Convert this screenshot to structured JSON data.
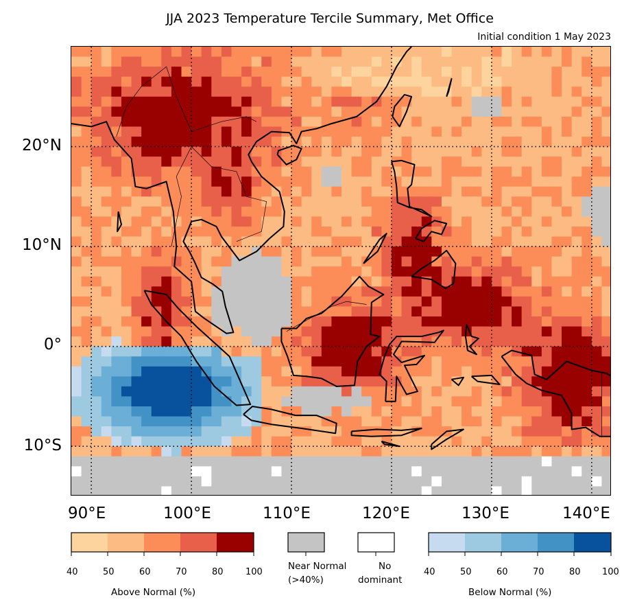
{
  "title": "JJA 2023 Temperature Tercile Summary, Met Office",
  "subtitle": "Initial condition 1 May 2023",
  "map": {
    "lon_range": [
      88,
      142
    ],
    "lat_range": [
      -15,
      30
    ],
    "lat_labels": [
      "20°N",
      "10°N",
      "0°",
      "10°S"
    ],
    "lon_labels": [
      "90°E",
      "100°E",
      "110°E",
      "120°E",
      "130°E",
      "140°E"
    ],
    "grid": "dotted",
    "regions": [
      {
        "category": "above_90",
        "name": "mainland-southeast-asia-north"
      },
      {
        "category": "above_90",
        "name": "philippines-borneo-sulawesi-papua"
      },
      {
        "category": "near_normal",
        "name": "gulf-of-thailand-java-sea"
      },
      {
        "category": "below_90",
        "name": "indian-ocean-off-sumatra"
      },
      {
        "category": "near_normal",
        "name": "southwest-corner"
      }
    ]
  },
  "colors": {
    "above": [
      "#fdd49e",
      "#fdbb84",
      "#fc8d59",
      "#e9604a",
      "#990000"
    ],
    "below": [
      "#c6dbef",
      "#9ecae1",
      "#6baed6",
      "#4292c6",
      "#08519c"
    ],
    "near_normal": "#c4c4c4",
    "no_dominant": "#ffffff"
  },
  "legend": {
    "above_ticks": [
      "40",
      "50",
      "60",
      "70",
      "80",
      "100"
    ],
    "above_label": "Above Normal (%)",
    "near_normal_label_1": "Near Normal",
    "near_normal_label_2": "(>40%)",
    "no_dominant_label_1": "No",
    "no_dominant_label_2": "dominant",
    "below_ticks": [
      "40",
      "50",
      "60",
      "70",
      "80",
      "100"
    ],
    "below_label": "Below Normal (%)"
  }
}
